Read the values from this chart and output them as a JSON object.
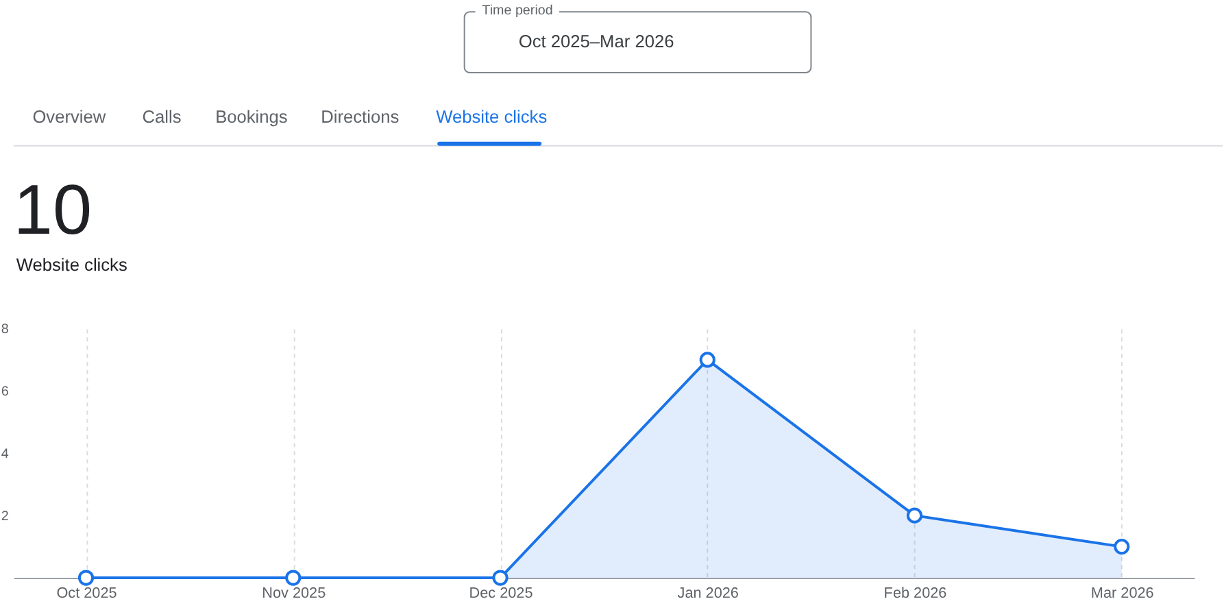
{
  "chart_data": {
    "type": "area",
    "title": "10",
    "subtitle": "Website clicks",
    "annotations": [
      "Time period",
      "Oct 2025–Mar 2026",
      "Overview",
      "Calls",
      "Bookings",
      "Directions",
      "Website clicks"
    ],
    "categories": [
      "Oct 2025",
      "Nov 2025",
      "Dec 2025",
      "Jan 2026",
      "Feb 2026",
      "Mar 2026"
    ],
    "series": [
      {
        "color": "#1a73e8",
        "values": [
          0,
          0,
          0,
          7,
          2,
          1
        ]
      }
    ],
    "ylim": [
      0,
      8
    ],
    "yticks": [
      2,
      4,
      6,
      8
    ],
    "grid": "x",
    "marker": "circle",
    "line_style": "solid"
  }
}
